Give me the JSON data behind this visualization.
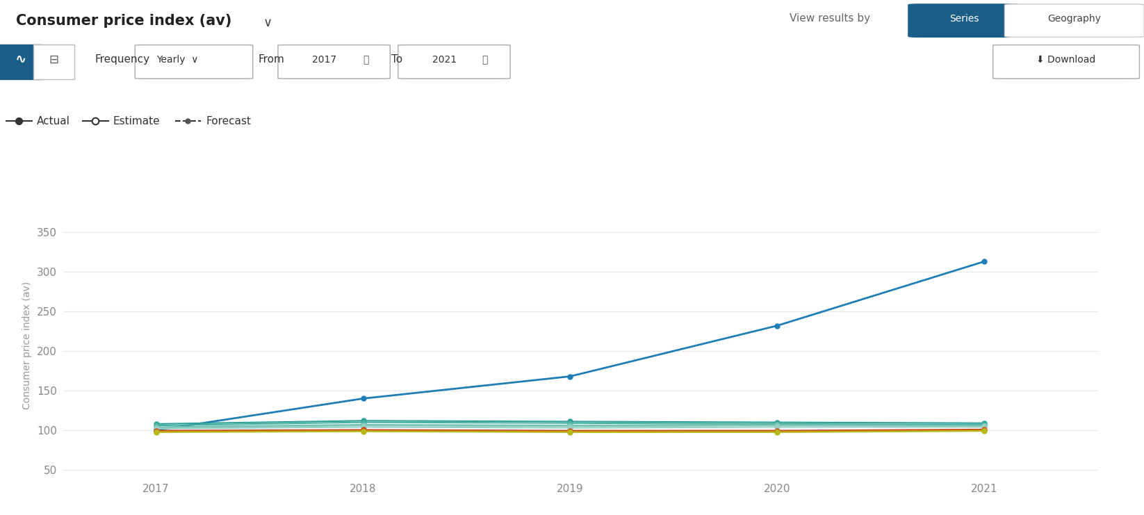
{
  "title": "Consumer price index (av)",
  "ylabel": "Consumer price index (av)",
  "years": [
    2017,
    2018,
    2019,
    2020,
    2021
  ],
  "yticks": [
    50,
    100,
    150,
    200,
    250,
    300,
    350
  ],
  "ylim": [
    45,
    370
  ],
  "series": [
    {
      "color": "#1f7eb5",
      "values": [
        100,
        140,
        168,
        232,
        313
      ],
      "lw": 2.0
    },
    {
      "color": "#2ba098",
      "values": [
        108,
        112,
        111,
        110,
        109
      ],
      "lw": 1.5
    },
    {
      "color": "#45b0a2",
      "values": [
        106,
        110,
        109,
        108,
        107
      ],
      "lw": 1.5
    },
    {
      "color": "#65beae",
      "values": [
        104,
        107,
        106,
        107,
        106
      ],
      "lw": 1.5
    },
    {
      "color": "#80c8ba",
      "values": [
        103,
        106,
        105,
        106,
        105
      ],
      "lw": 1.5
    },
    {
      "color": "#99d0c4",
      "values": [
        102,
        104,
        103,
        104,
        104
      ],
      "lw": 1.5
    },
    {
      "color": "#c8391a",
      "values": [
        99.5,
        100.5,
        99.5,
        99.5,
        101
      ],
      "lw": 1.5
    },
    {
      "color": "#c87d18",
      "values": [
        98.5,
        99.5,
        98.5,
        98.5,
        100
      ],
      "lw": 1.5
    },
    {
      "color": "#b8b818",
      "values": [
        97.5,
        98.5,
        97.5,
        97.5,
        99
      ],
      "lw": 1.5
    }
  ],
  "background_color": "#ffffff",
  "grid_color": "#e8e8e8",
  "tick_color": "#888888",
  "label_color": "#999999",
  "header_bg": "#f2f2f2",
  "active_btn_color": "#1b5e88",
  "title_text": "Consumer price index (av)",
  "freq_text": "Yearly",
  "from_text": "2017",
  "to_text": "2021"
}
